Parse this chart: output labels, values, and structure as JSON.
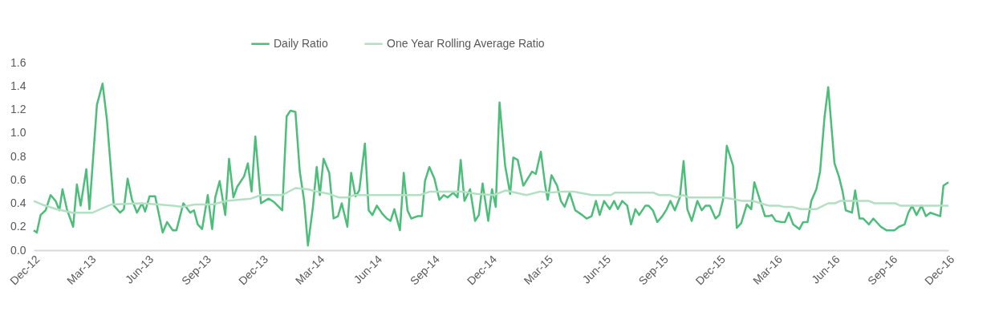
{
  "chart_data": {
    "type": "line",
    "xlim": [
      "2012-12-01",
      "2016-12-01"
    ],
    "xticks": [
      {
        "value": "2012-12-01",
        "label": "Dec-12"
      },
      {
        "value": "2013-03-01",
        "label": "Mar-13"
      },
      {
        "value": "2013-06-01",
        "label": "Jun-13"
      },
      {
        "value": "2013-09-01",
        "label": "Sep-13"
      },
      {
        "value": "2013-12-01",
        "label": "Dec-13"
      },
      {
        "value": "2014-03-01",
        "label": "Mar-14"
      },
      {
        "value": "2014-06-01",
        "label": "Jun-14"
      },
      {
        "value": "2014-09-01",
        "label": "Sep-14"
      },
      {
        "value": "2014-12-01",
        "label": "Dec-14"
      },
      {
        "value": "2015-03-01",
        "label": "Mar-15"
      },
      {
        "value": "2015-06-01",
        "label": "Jun-15"
      },
      {
        "value": "2015-09-01",
        "label": "Sep-15"
      },
      {
        "value": "2015-12-01",
        "label": "Dec-15"
      },
      {
        "value": "2016-03-01",
        "label": "Mar-16"
      },
      {
        "value": "2016-06-01",
        "label": "Jun-16"
      },
      {
        "value": "2016-09-01",
        "label": "Sep-16"
      },
      {
        "value": "2016-12-01",
        "label": "Dec-16"
      }
    ],
    "ylim": [
      0,
      1.6
    ],
    "yticks": [
      {
        "value": 0,
        "label": "0.0"
      },
      0.2,
      0.4,
      0.6,
      0.8,
      {
        "value": 1,
        "label": "1.0"
      },
      1.2,
      1.4,
      1.6
    ],
    "grid": false,
    "legend": "top",
    "marker": "none",
    "line_style": "solid",
    "series": [
      {
        "name": "Daily Ratio",
        "color": "#4dbd7a",
        "x": [
          "2012-12-01",
          "2012-12-06",
          "2012-12-12",
          "2012-12-20",
          "2012-12-28",
          "2013-01-05",
          "2013-01-11",
          "2013-01-16",
          "2013-01-23",
          "2013-02-02",
          "2013-02-08",
          "2013-02-14",
          "2013-02-23",
          "2013-02-28",
          "2013-03-12",
          "2013-03-21",
          "2013-03-28",
          "2013-04-08",
          "2013-04-18",
          "2013-04-24",
          "2013-04-30",
          "2013-05-07",
          "2013-05-15",
          "2013-05-23",
          "2013-05-28",
          "2013-06-04",
          "2013-06-13",
          "2013-06-25",
          "2013-07-02",
          "2013-07-11",
          "2013-07-17",
          "2013-07-28",
          "2013-08-08",
          "2013-08-14",
          "2013-08-20",
          "2013-08-27",
          "2013-09-05",
          "2013-09-12",
          "2013-09-17",
          "2013-09-24",
          "2013-10-03",
          "2013-10-09",
          "2013-10-16",
          "2013-10-22",
          "2013-11-02",
          "2013-11-08",
          "2013-11-14",
          "2013-11-20",
          "2013-11-29",
          "2013-12-11",
          "2013-12-20",
          "2014-01-02",
          "2014-01-09",
          "2014-01-15",
          "2014-01-23",
          "2014-01-30",
          "2014-02-06",
          "2014-02-12",
          "2014-02-20",
          "2014-02-26",
          "2014-03-03",
          "2014-03-09",
          "2014-03-18",
          "2014-03-25",
          "2014-04-01",
          "2014-04-07",
          "2014-04-16",
          "2014-04-22",
          "2014-04-29",
          "2014-05-05",
          "2014-05-14",
          "2014-05-20",
          "2014-05-26",
          "2014-06-02",
          "2014-06-11",
          "2014-06-18",
          "2014-06-24",
          "2014-06-30",
          "2014-07-09",
          "2014-07-15",
          "2014-07-21",
          "2014-07-27",
          "2014-08-06",
          "2014-08-13",
          "2014-08-18",
          "2014-08-25",
          "2014-09-02",
          "2014-09-10",
          "2014-09-17",
          "2014-09-23",
          "2014-10-02",
          "2014-10-09",
          "2014-10-14",
          "2014-10-20",
          "2014-10-29",
          "2014-11-06",
          "2014-11-12",
          "2014-11-18",
          "2014-11-27",
          "2014-12-03",
          "2014-12-09",
          "2014-12-15",
          "2014-12-24",
          "2015-01-01",
          "2015-01-06",
          "2015-01-13",
          "2015-01-22",
          "2015-02-05",
          "2015-02-11",
          "2015-02-19",
          "2015-02-26",
          "2015-03-02",
          "2015-03-08",
          "2015-03-17",
          "2015-03-23",
          "2015-03-29",
          "2015-04-06",
          "2015-04-15",
          "2015-04-26",
          "2015-05-03",
          "2015-05-11",
          "2015-05-18",
          "2015-05-24",
          "2015-05-31",
          "2015-06-09",
          "2015-06-16",
          "2015-06-22",
          "2015-06-29",
          "2015-07-07",
          "2015-07-13",
          "2015-07-20",
          "2015-07-26",
          "2015-08-05",
          "2015-08-10",
          "2015-08-17",
          "2015-08-24",
          "2015-09-01",
          "2015-09-08",
          "2015-09-14",
          "2015-09-21",
          "2015-09-29",
          "2015-10-05",
          "2015-10-11",
          "2015-10-18",
          "2015-10-27",
          "2015-11-03",
          "2015-11-09",
          "2015-11-16",
          "2015-11-25",
          "2015-12-01",
          "2015-12-07",
          "2015-12-13",
          "2015-12-23",
          "2015-12-29",
          "2016-01-05",
          "2016-01-14",
          "2016-01-21",
          "2016-01-26",
          "2016-02-05",
          "2016-02-12",
          "2016-02-18",
          "2016-02-23",
          "2016-02-29",
          "2016-03-09",
          "2016-03-15",
          "2016-03-21",
          "2016-03-28",
          "2016-04-07",
          "2016-04-13",
          "2016-04-20",
          "2016-04-26",
          "2016-05-04",
          "2016-05-10",
          "2016-05-17",
          "2016-05-23",
          "2016-06-02",
          "2016-06-09",
          "2016-06-15",
          "2016-06-20",
          "2016-06-30",
          "2016-07-05",
          "2016-07-12",
          "2016-07-18",
          "2016-07-27",
          "2016-08-03",
          "2016-08-15",
          "2016-08-24",
          "2016-09-06",
          "2016-09-13",
          "2016-09-22",
          "2016-09-28",
          "2016-10-04",
          "2016-10-11",
          "2016-10-19",
          "2016-10-26",
          "2016-11-02",
          "2016-11-18",
          "2016-11-23",
          "2016-12-01"
        ],
        "values": [
          0.17,
          0.15,
          0.3,
          0.34,
          0.47,
          0.42,
          0.34,
          0.52,
          0.35,
          0.2,
          0.56,
          0.38,
          0.69,
          0.35,
          1.24,
          1.42,
          1.11,
          0.38,
          0.32,
          0.35,
          0.61,
          0.43,
          0.32,
          0.4,
          0.33,
          0.46,
          0.46,
          0.15,
          0.24,
          0.17,
          0.17,
          0.4,
          0.32,
          0.34,
          0.22,
          0.18,
          0.47,
          0.18,
          0.45,
          0.59,
          0.3,
          0.78,
          0.45,
          0.54,
          0.63,
          0.74,
          0.5,
          0.97,
          0.4,
          0.44,
          0.41,
          0.34,
          1.14,
          1.19,
          1.18,
          0.67,
          0.42,
          0.04,
          0.37,
          0.71,
          0.47,
          0.78,
          0.66,
          0.27,
          0.29,
          0.4,
          0.2,
          0.66,
          0.46,
          0.51,
          0.91,
          0.34,
          0.3,
          0.38,
          0.31,
          0.27,
          0.25,
          0.35,
          0.17,
          0.66,
          0.34,
          0.27,
          0.29,
          0.29,
          0.59,
          0.71,
          0.61,
          0.43,
          0.47,
          0.45,
          0.49,
          0.45,
          0.77,
          0.42,
          0.52,
          0.25,
          0.3,
          0.57,
          0.25,
          0.52,
          0.37,
          1.26,
          0.72,
          0.48,
          0.79,
          0.77,
          0.55,
          0.67,
          0.65,
          0.84,
          0.55,
          0.43,
          0.64,
          0.55,
          0.42,
          0.37,
          0.49,
          0.34,
          0.3,
          0.27,
          0.29,
          0.42,
          0.3,
          0.42,
          0.35,
          0.42,
          0.35,
          0.42,
          0.38,
          0.22,
          0.35,
          0.3,
          0.38,
          0.38,
          0.34,
          0.24,
          0.29,
          0.35,
          0.42,
          0.34,
          0.45,
          0.76,
          0.35,
          0.25,
          0.42,
          0.34,
          0.38,
          0.38,
          0.27,
          0.3,
          0.43,
          0.89,
          0.72,
          0.19,
          0.23,
          0.39,
          0.35,
          0.58,
          0.41,
          0.29,
          0.29,
          0.3,
          0.25,
          0.24,
          0.24,
          0.32,
          0.22,
          0.18,
          0.24,
          0.24,
          0.42,
          0.52,
          0.67,
          1.13,
          1.39,
          0.74,
          0.63,
          0.5,
          0.34,
          0.32,
          0.51,
          0.27,
          0.27,
          0.22,
          0.27,
          0.2,
          0.17,
          0.17,
          0.2,
          0.22,
          0.32,
          0.38,
          0.3,
          0.38,
          0.29,
          0.32,
          0.29,
          0.55,
          0.58
        ]
      },
      {
        "name": "One Year Rolling Average Ratio",
        "color": "#b3e0c2",
        "x": [
          "2012-12-01",
          "2012-12-14",
          "2013-01-06",
          "2013-02-01",
          "2013-03-05",
          "2013-04-04",
          "2013-05-21",
          "2013-06-19",
          "2013-07-11",
          "2013-07-27",
          "2013-08-15",
          "2013-09-13",
          "2013-10-05",
          "2013-11-13",
          "2013-11-29",
          "2014-01-02",
          "2014-01-23",
          "2014-02-12",
          "2014-02-26",
          "2014-03-18",
          "2014-04-02",
          "2014-04-17",
          "2014-04-27",
          "2014-07-11",
          "2014-08-10",
          "2014-08-26",
          "2014-10-16",
          "2014-11-08",
          "2014-12-06",
          "2014-12-25",
          "2015-01-27",
          "2015-02-18",
          "2015-03-04",
          "2015-03-26",
          "2015-04-12",
          "2015-04-21",
          "2015-05-12",
          "2015-06-11",
          "2015-06-17",
          "2015-08-18",
          "2015-08-27",
          "2015-09-13",
          "2015-09-24",
          "2015-10-04",
          "2015-10-13",
          "2015-12-07",
          "2015-12-19",
          "2016-01-06",
          "2016-01-23",
          "2016-02-18",
          "2016-03-05",
          "2016-03-13",
          "2016-03-26",
          "2016-04-09",
          "2016-05-04",
          "2016-05-23",
          "2016-06-03",
          "2016-06-11",
          "2016-07-27",
          "2016-08-05",
          "2016-09-07",
          "2016-09-15",
          "2016-12-01"
        ],
        "values": [
          0.42,
          0.39,
          0.35,
          0.32,
          0.32,
          0.39,
          0.4,
          0.39,
          0.38,
          0.37,
          0.39,
          0.39,
          0.42,
          0.44,
          0.47,
          0.47,
          0.53,
          0.52,
          0.5,
          0.48,
          0.45,
          0.45,
          0.47,
          0.47,
          0.47,
          0.5,
          0.5,
          0.48,
          0.47,
          0.51,
          0.47,
          0.5,
          0.49,
          0.5,
          0.5,
          0.49,
          0.47,
          0.47,
          0.49,
          0.49,
          0.47,
          0.47,
          0.45,
          0.47,
          0.45,
          0.45,
          0.44,
          0.42,
          0.42,
          0.38,
          0.38,
          0.37,
          0.37,
          0.35,
          0.35,
          0.4,
          0.4,
          0.42,
          0.42,
          0.4,
          0.4,
          0.38,
          0.38
        ]
      }
    ]
  }
}
